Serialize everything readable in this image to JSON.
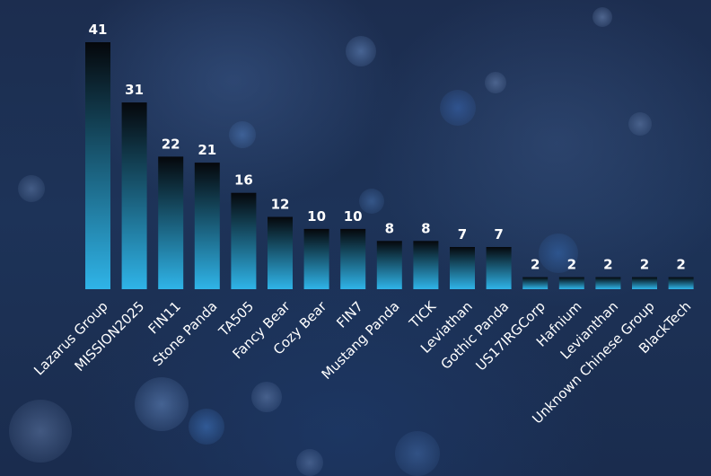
{
  "chart_data": {
    "type": "bar",
    "categories": [
      "Lazarus Group",
      "MISSION2025",
      "FIN11",
      "Stone Panda",
      "TA505",
      "Fancy Bear",
      "Cozy Bear",
      "FIN7",
      "Mustang Panda",
      "TICK",
      "Leviathan",
      "Gothic Panda",
      "US17IRGCorp",
      "Hafnium",
      "Levianthan",
      "Unknown Chinese Group",
      "BlackTech"
    ],
    "values": [
      41,
      31,
      22,
      21,
      16,
      12,
      10,
      10,
      8,
      8,
      7,
      7,
      2,
      2,
      2,
      2,
      2
    ],
    "title": "",
    "xlabel": "",
    "ylabel": "",
    "ylim": [
      0,
      41
    ],
    "grid": false,
    "legend": "none",
    "colors": {
      "bar_top": "#05070b",
      "bar_bottom": "#2fb4e8",
      "label": "#ffffff",
      "background": "#1c2f52"
    }
  }
}
